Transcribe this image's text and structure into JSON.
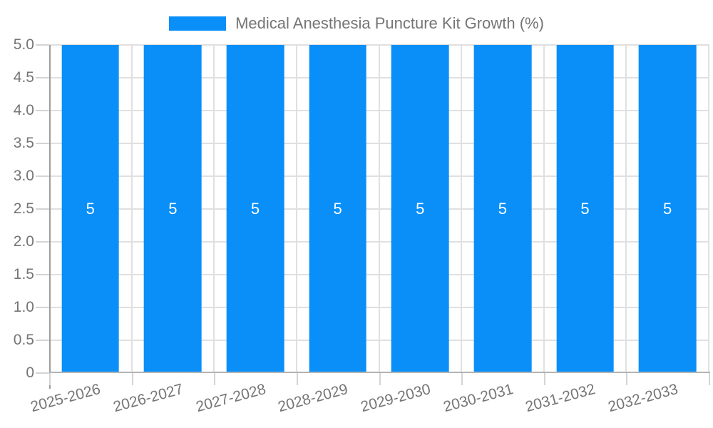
{
  "legend": {
    "label": "Medical Anesthesia Puncture Kit Growth (%)"
  },
  "colors": {
    "bar": "#0a8ff9",
    "grid": "#e0e0e0",
    "axis": "#9e9e9e",
    "tick": "#d4d4d4",
    "text": "#757575",
    "label": "#ffffff"
  },
  "chart_data": {
    "type": "bar",
    "title": "Medical Anesthesia Puncture Kit Growth (%)",
    "xlabel": "",
    "ylabel": "",
    "categories": [
      "2025-2026",
      "2026-2027",
      "2027-2028",
      "2028-2029",
      "2029-2030",
      "2030-2031",
      "2031-2032",
      "2032-2033"
    ],
    "series": [
      {
        "name": "Medical Anesthesia Puncture Kit Growth (%)",
        "values": [
          5,
          5,
          5,
          5,
          5,
          5,
          5,
          5
        ]
      }
    ],
    "bar_value_labels": [
      "5",
      "5",
      "5",
      "5",
      "5",
      "5",
      "5",
      "5"
    ],
    "ylim": [
      0,
      5
    ],
    "grid": true,
    "legend_position": "top-center",
    "yticks": [
      {
        "value": 0,
        "label": "0"
      },
      {
        "value": 0.5,
        "label": "0.5"
      },
      {
        "value": 1,
        "label": "1.0"
      },
      {
        "value": 1.5,
        "label": "1.5"
      },
      {
        "value": 2,
        "label": "2.0"
      },
      {
        "value": 2.5,
        "label": "2.5"
      },
      {
        "value": 3,
        "label": "3.0"
      },
      {
        "value": 3.5,
        "label": "3.5"
      },
      {
        "value": 4,
        "label": "4.0"
      },
      {
        "value": 4.5,
        "label": "4.5"
      },
      {
        "value": 5,
        "label": "5.0"
      }
    ]
  }
}
